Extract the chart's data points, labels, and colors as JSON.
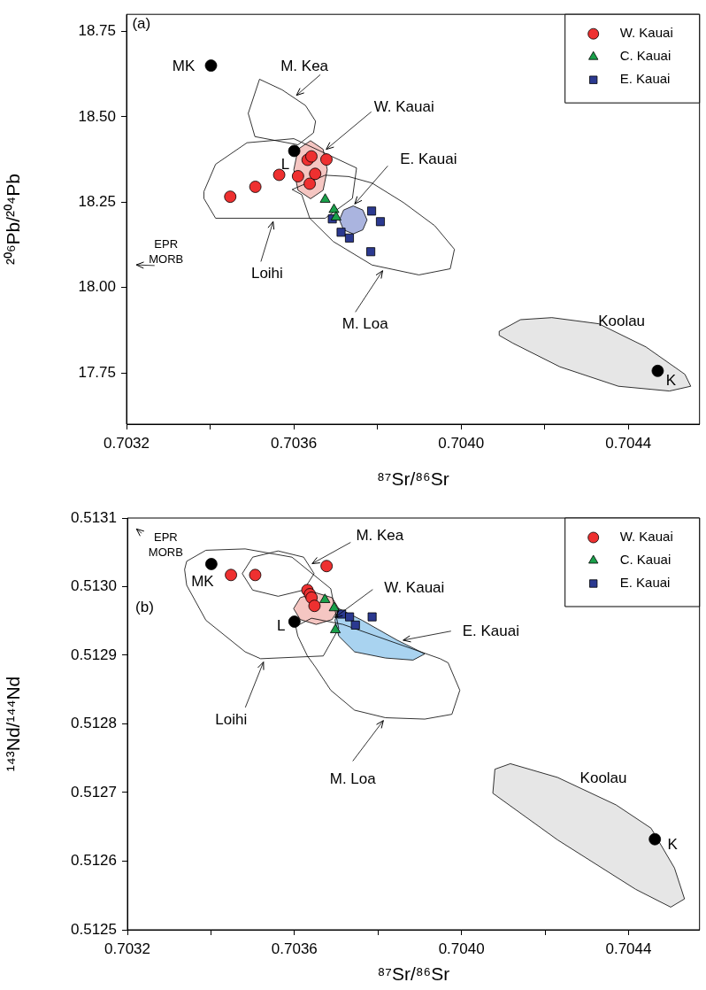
{
  "chart_data": [
    {
      "type": "scatter",
      "xlabel": "⁸⁷Sr/⁸⁶Sr",
      "ylabel": "²⁰⁶Pb/²⁰⁴Pb",
      "xlim": [
        0.7032,
        0.70457
      ],
      "ylim": [
        17.6,
        18.8
      ],
      "xticks": [
        0.7032,
        {
          "value": 0.7034,
          "label": null
        },
        0.7036,
        {
          "value": 0.7038,
          "label": null
        },
        {
          "value": 0.704,
          "label": "0.7040"
        },
        {
          "value": 0.7042,
          "label": null
        },
        0.7044
      ],
      "yticks": [
        17.75,
        {
          "value": 18,
          "label": "18.00"
        },
        18.25,
        {
          "value": 18.5,
          "label": "18.50"
        },
        18.75
      ],
      "grid": false,
      "legend": "top right",
      "series": [
        {
          "name": "W. Kauai",
          "type": "scatter",
          "marker": "circle",
          "color": "#ee3030",
          "x": [
            0.703448,
            0.703508,
            0.703565,
            0.70361,
            0.703638,
            0.703651,
            0.703633,
            0.703642,
            0.703678
          ],
          "values": [
            18.266,
            18.295,
            18.33,
            18.326,
            18.304,
            18.333,
            18.374,
            18.384,
            18.375
          ]
        },
        {
          "name": "C. Kauai",
          "type": "scatter",
          "marker": "triangle",
          "color": "#1aa04a",
          "x": [
            0.703675,
            0.703696,
            0.703701
          ],
          "values": [
            18.258,
            18.228,
            18.206
          ]
        },
        {
          "name": "E. Kauai",
          "type": "scatter",
          "marker": "square",
          "color": "#2b3990",
          "x": [
            0.703692,
            0.703786,
            0.703807,
            0.703713,
            0.703733,
            0.703784
          ],
          "values": [
            18.201,
            18.224,
            18.193,
            18.162,
            18.145,
            18.105
          ]
        },
        {
          "type": "scatter",
          "marker": "circle",
          "color": "#000000",
          "x": [
            0.703402,
            0.703601,
            0.70447
          ],
          "values": [
            18.65,
            18.4,
            17.756
          ]
        },
        {
          "type": "area",
          "marker": "none",
          "color": "#f5c6c2",
          "x": [
            0.70364,
            0.70367,
            0.70368,
            0.70367,
            0.70364,
            0.70361,
            0.7036,
            0.70361
          ],
          "values": [
            18.43,
            18.405,
            18.345,
            18.285,
            18.26,
            18.285,
            18.345,
            18.405
          ]
        },
        {
          "type": "area",
          "marker": "none",
          "color": "#aab4df",
          "x": [
            0.703742,
            0.703765,
            0.703775,
            0.703765,
            0.703742,
            0.703719,
            0.703709,
            0.703719
          ],
          "values": [
            18.239,
            18.227,
            18.198,
            18.169,
            18.157,
            18.169,
            18.198,
            18.227
          ]
        },
        {
          "type": "area",
          "marker": "none",
          "color": "#e6e6e6",
          "x": [
            0.704091,
            0.704142,
            0.704217,
            0.704329,
            0.704442,
            0.704535,
            0.704549,
            0.704498,
            0.704376,
            0.704236,
            0.704124,
            0.704091
          ],
          "values": [
            17.872,
            17.906,
            17.912,
            17.894,
            17.826,
            17.746,
            17.711,
            17.697,
            17.711,
            17.768,
            17.837,
            17.86
          ]
        },
        {
          "type": "area",
          "marker": "none",
          "color": "#ffffff",
          "x": [
            0.703518,
            0.703491,
            0.703507,
            0.70361,
            0.703647,
            0.703652,
            0.703628,
            0.703572
          ],
          "values": [
            18.61,
            18.51,
            18.442,
            18.418,
            18.453,
            18.487,
            18.533,
            18.579
          ]
        },
        {
          "type": "area",
          "marker": "none",
          "color": "#ffffff",
          "x": [
            0.703385,
            0.703413,
            0.703488,
            0.7036,
            0.70375,
            0.70374,
            0.703675,
            0.703413,
            0.703385
          ],
          "values": [
            18.281,
            18.361,
            18.424,
            18.436,
            18.35,
            18.261,
            18.203,
            18.203,
            18.261
          ]
        },
        {
          "type": "area",
          "marker": "none",
          "color": "#ffffff",
          "x": [
            0.703675,
            0.703596,
            0.703619,
            0.703638,
            0.703694,
            0.703787,
            0.703899,
            0.703974,
            0.703984,
            0.703937,
            0.703862,
            0.703787,
            0.703731
          ],
          "values": [
            18.329,
            18.287,
            18.272,
            18.203,
            18.135,
            18.066,
            18.037,
            18.055,
            18.112,
            18.181,
            18.249,
            18.306,
            18.325
          ]
        }
      ],
      "annotations": [
        "(a)",
        "EPR\nMORB",
        {
          "text": "M. Kea",
          "x": 0.7036,
          "y": 18.556
        },
        {
          "text": "W. Kauai",
          "x": 0.703671,
          "y": 18.398
        },
        {
          "text": "E. Kauai",
          "x": 0.70374,
          "y": 18.237
        },
        {
          "text": "Loihi",
          "x": 0.703553,
          "y": 18.203
        },
        {
          "text": "M. Loa",
          "x": 0.703817,
          "y": 18.058
        },
        "Koolau",
        {
          "text": "MK",
          "x": 0.703402,
          "y": 18.65
        },
        {
          "text": "L",
          "x": 0.703601,
          "y": 18.4
        },
        {
          "text": "K",
          "x": 0.70447,
          "y": 17.756
        }
      ]
    },
    {
      "type": "scatter",
      "xlabel": "⁸⁷Sr/⁸⁶Sr",
      "ylabel": "¹⁴³Nd/¹⁴⁴Nd",
      "xlim": [
        0.7032,
        0.70457
      ],
      "ylim": [
        0.5125,
        0.5131
      ],
      "xticks": [
        0.7032,
        {
          "value": 0.7034,
          "label": null
        },
        0.7036,
        {
          "value": 0.7038,
          "label": null
        },
        {
          "value": 0.704,
          "label": "0.7040"
        },
        {
          "value": 0.7042,
          "label": null
        },
        0.7044
      ],
      "yticks": [
        0.5125,
        0.5126,
        0.5127,
        0.5128,
        0.5129,
        {
          "value": 0.513,
          "label": "0.5130"
        },
        0.5131
      ],
      "grid": false,
      "legend": "top right",
      "series": [
        {
          "name": "W. Kauai",
          "type": "scatter",
          "marker": "circle",
          "color": "#ee3030",
          "x": [
            0.703448,
            0.703506,
            0.703677,
            0.703631,
            0.703637,
            0.703641,
            0.703648
          ],
          "values": [
            0.513017,
            0.513017,
            0.51303,
            0.512995,
            0.512989,
            0.512984,
            0.512972
          ]
        },
        {
          "name": "C. Kauai",
          "type": "scatter",
          "marker": "triangle",
          "color": "#1aa04a",
          "x": [
            0.703673,
            0.703695,
            0.703698
          ],
          "values": [
            0.512981,
            0.512969,
            0.512937
          ]
        },
        {
          "name": "E. Kauai",
          "type": "scatter",
          "marker": "square",
          "color": "#2b3990",
          "x": [
            0.703713,
            0.703732,
            0.703746,
            0.703786
          ],
          "values": [
            0.51296,
            0.512956,
            0.512944,
            0.512956
          ]
        },
        {
          "type": "scatter",
          "marker": "circle",
          "color": "#000000",
          "x": [
            0.703401,
            0.7036,
            0.704463
          ],
          "values": [
            0.513033,
            0.512949,
            0.512632
          ]
        },
        {
          "type": "area",
          "marker": "none",
          "color": "#f5c6c2",
          "x": [
            0.703652,
            0.70369,
            0.703706,
            0.70369,
            0.703652,
            0.703614,
            0.703598,
            0.703614
          ],
          "values": [
            0.512991,
            0.512984,
            0.512968,
            0.512952,
            0.512945,
            0.512952,
            0.512968,
            0.512984
          ]
        },
        {
          "type": "area",
          "marker": "none",
          "color": "#a9d3f0",
          "x": [
            0.703706,
            0.703762,
            0.703846,
            0.703912,
            0.703884,
            0.703818,
            0.703744,
            0.703706,
            0.703697
          ],
          "values": [
            0.512968,
            0.512951,
            0.512922,
            0.512902,
            0.512893,
            0.512896,
            0.512905,
            0.512928,
            0.512951
          ]
        },
        {
          "type": "area",
          "marker": "none",
          "color": "#e6e6e6",
          "x": [
            0.704075,
            0.70408,
            0.704117,
            0.70423,
            0.70437,
            0.704454,
            0.70451,
            0.704534,
            0.704501,
            0.704417,
            0.70423
          ],
          "values": [
            0.512699,
            0.512734,
            0.512742,
            0.512722,
            0.512682,
            0.512648,
            0.51259,
            0.512545,
            0.512533,
            0.512559,
            0.512631
          ]
        },
        {
          "type": "area",
          "marker": "none",
          "color": "#ffffff",
          "x": [
            0.703342,
            0.703388,
            0.703482,
            0.703594,
            0.703687,
            0.703706,
            0.703669,
            0.703519,
            0.703482,
            0.703388,
            0.703342,
            0.703337
          ],
          "values": [
            0.513037,
            0.513053,
            0.513055,
            0.513043,
            0.512997,
            0.512939,
            0.512899,
            0.512895,
            0.512905,
            0.512951,
            0.513002,
            0.513025
          ]
        },
        {
          "type": "area",
          "marker": "none",
          "color": "#ffffff",
          "x": [
            0.703561,
            0.703622,
            0.703647,
            0.703622,
            0.703561,
            0.7035,
            0.703475,
            0.7035
          ],
          "values": [
            0.513052,
            0.513043,
            0.513019,
            0.512995,
            0.512986,
            0.512995,
            0.513019,
            0.513043
          ]
        },
        {
          "type": "area",
          "marker": "none",
          "color": "#ffffff",
          "x": [
            0.703603,
            0.703641,
            0.703716,
            0.703949,
            0.703968,
            0.703996,
            0.703977,
            0.703912,
            0.703818,
            0.703744,
            0.703687,
            0.70365,
            0.703631,
            0.703608
          ],
          "values": [
            0.512942,
            0.512954,
            0.512945,
            0.512895,
            0.512889,
            0.512849,
            0.512814,
            0.512807,
            0.512809,
            0.51282,
            0.512849,
            0.512883,
            0.512899,
            0.512928
          ]
        }
      ],
      "annotations": [
        "(b)",
        "EPR\nMORB",
        {
          "text": "M. Kea",
          "x": 0.703635,
          "y": 0.513031
        },
        {
          "text": "W. Kauai",
          "x": 0.70369,
          "y": 0.512952
        },
        {
          "text": "E. Kauai",
          "x": 0.703852,
          "y": 0.512921
        },
        {
          "text": "Loihi",
          "x": 0.703529,
          "y": 0.512895
        },
        {
          "text": "M. Loa",
          "x": 0.703818,
          "y": 0.512809
        },
        "Koolau",
        {
          "text": "MK",
          "x": 0.703401,
          "y": 0.513033
        },
        {
          "text": "L",
          "x": 0.7036,
          "y": 0.512949
        },
        {
          "text": "K",
          "x": 0.704463,
          "y": 0.512632
        }
      ]
    }
  ]
}
